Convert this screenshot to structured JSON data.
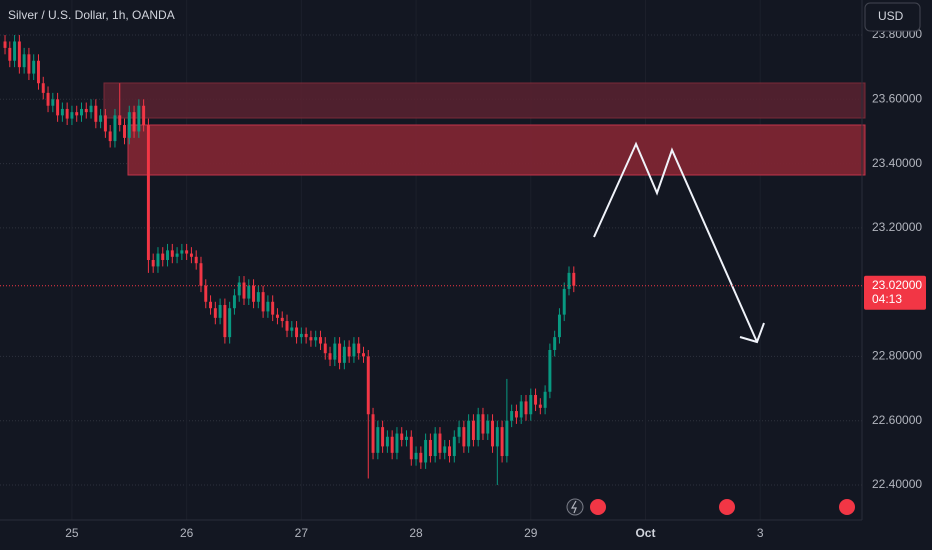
{
  "chart_data": {
    "type": "candlestick",
    "title": "Silver / U.S. Dollar, 1h, OANDA",
    "currency_button": "USD",
    "up_color": "#089981",
    "down_color": "#f23645",
    "open": [
      23.78,
      23.76,
      23.72,
      23.78,
      23.7,
      23.74,
      23.68,
      23.72,
      23.65,
      23.62,
      23.58,
      23.6,
      23.55,
      23.57,
      23.54,
      23.56,
      23.55,
      23.57,
      23.56,
      23.58,
      23.53,
      23.55,
      23.5,
      23.47,
      23.55,
      23.52,
      23.48,
      23.56,
      23.5,
      23.58,
      23.52,
      23.1,
      23.08,
      23.12,
      23.1,
      23.13,
      23.11,
      23.12,
      23.13,
      23.12,
      23.11,
      23.09,
      23.02,
      22.97,
      22.95,
      22.92,
      22.96,
      22.86,
      22.95,
      22.99,
      23.03,
      22.98,
      23.02,
      22.97,
      23.0,
      22.94,
      22.97,
      22.93,
      22.92,
      22.91,
      22.88,
      22.89,
      22.86,
      22.87,
      22.86,
      22.85,
      22.86,
      22.84,
      22.81,
      22.79,
      22.84,
      22.78,
      22.83,
      22.8,
      22.84,
      22.81,
      22.8,
      22.62,
      22.5,
      22.58,
      22.52,
      22.55,
      22.5,
      22.56,
      22.54,
      22.55,
      22.48,
      22.5,
      22.47,
      22.54,
      22.49,
      22.56,
      22.5,
      22.52,
      22.49,
      22.55,
      22.58,
      22.52,
      22.6,
      22.54,
      22.62,
      22.56,
      22.6,
      22.52,
      22.58,
      22.49,
      22.6,
      22.63,
      22.61,
      22.66,
      22.62,
      22.68,
      22.65,
      22.64,
      22.69,
      22.82,
      22.86,
      22.93,
      23.01,
      23.06
    ],
    "high": [
      23.8,
      23.78,
      23.8,
      23.8,
      23.76,
      23.76,
      23.74,
      23.74,
      23.67,
      23.64,
      23.62,
      23.62,
      23.59,
      23.59,
      23.58,
      23.58,
      23.59,
      23.59,
      23.6,
      23.6,
      23.57,
      23.57,
      23.52,
      23.57,
      23.65,
      23.54,
      23.58,
      23.58,
      23.6,
      23.6,
      23.54,
      23.12,
      23.14,
      23.14,
      23.15,
      23.15,
      23.14,
      23.15,
      23.15,
      23.14,
      23.13,
      23.11,
      23.04,
      22.99,
      22.97,
      22.98,
      22.98,
      22.97,
      23.01,
      23.05,
      23.05,
      23.04,
      23.04,
      23.02,
      23.02,
      22.99,
      22.99,
      22.95,
      22.94,
      22.93,
      22.91,
      22.91,
      22.89,
      22.89,
      22.88,
      22.88,
      22.88,
      22.86,
      22.83,
      22.86,
      22.86,
      22.85,
      22.85,
      22.86,
      22.86,
      22.83,
      22.82,
      22.64,
      22.6,
      22.6,
      22.57,
      22.57,
      22.58,
      22.58,
      22.57,
      22.57,
      22.52,
      22.52,
      22.56,
      22.56,
      22.58,
      22.58,
      22.54,
      22.54,
      22.57,
      22.6,
      22.6,
      22.62,
      22.62,
      22.64,
      22.64,
      22.62,
      22.62,
      22.6,
      22.6,
      22.73,
      22.65,
      22.65,
      22.68,
      22.68,
      22.7,
      22.7,
      22.67,
      22.71,
      22.84,
      22.88,
      22.95,
      23.03,
      23.08,
      23.08
    ],
    "low": [
      23.74,
      23.7,
      23.7,
      23.68,
      23.68,
      23.66,
      23.66,
      23.63,
      23.6,
      23.56,
      23.56,
      23.53,
      23.53,
      23.52,
      23.52,
      23.53,
      23.53,
      23.54,
      23.54,
      23.51,
      23.51,
      23.48,
      23.45,
      23.45,
      23.5,
      23.46,
      23.46,
      23.48,
      23.48,
      23.5,
      23.06,
      23.06,
      23.06,
      23.08,
      23.08,
      23.09,
      23.09,
      23.1,
      23.1,
      23.09,
      23.07,
      23.0,
      22.95,
      22.93,
      22.9,
      22.9,
      22.84,
      22.84,
      22.93,
      22.97,
      22.96,
      22.96,
      22.95,
      22.95,
      22.92,
      22.92,
      22.91,
      22.9,
      22.89,
      22.86,
      22.86,
      22.84,
      22.84,
      22.84,
      22.83,
      22.83,
      22.82,
      22.79,
      22.77,
      22.77,
      22.76,
      22.76,
      22.78,
      22.78,
      22.79,
      22.78,
      22.42,
      22.48,
      22.48,
      22.5,
      22.5,
      22.48,
      22.48,
      22.52,
      22.52,
      22.46,
      22.46,
      22.45,
      22.45,
      22.47,
      22.47,
      22.48,
      22.48,
      22.47,
      22.47,
      22.53,
      22.5,
      22.5,
      22.52,
      22.52,
      22.54,
      22.54,
      22.5,
      22.4,
      22.47,
      22.47,
      22.58,
      22.59,
      22.59,
      22.6,
      22.6,
      22.63,
      22.62,
      22.62,
      22.67,
      22.8,
      22.84,
      22.91,
      22.99,
      23.0
    ],
    "close": [
      23.76,
      23.72,
      23.78,
      23.7,
      23.74,
      23.68,
      23.72,
      23.65,
      23.62,
      23.58,
      23.6,
      23.55,
      23.57,
      23.54,
      23.56,
      23.55,
      23.57,
      23.56,
      23.58,
      23.53,
      23.55,
      23.5,
      23.47,
      23.55,
      23.52,
      23.48,
      23.56,
      23.5,
      23.58,
      23.52,
      23.1,
      23.08,
      23.12,
      23.1,
      23.13,
      23.11,
      23.12,
      23.13,
      23.12,
      23.11,
      23.09,
      23.02,
      22.97,
      22.95,
      22.92,
      22.96,
      22.86,
      22.95,
      22.99,
      23.03,
      22.98,
      23.02,
      22.97,
      23.0,
      22.94,
      22.97,
      22.93,
      22.92,
      22.91,
      22.88,
      22.89,
      22.86,
      22.87,
      22.86,
      22.85,
      22.86,
      22.84,
      22.81,
      22.79,
      22.84,
      22.78,
      22.83,
      22.8,
      22.84,
      22.81,
      22.8,
      22.62,
      22.5,
      22.58,
      22.52,
      22.55,
      22.5,
      22.56,
      22.54,
      22.55,
      22.48,
      22.5,
      22.47,
      22.54,
      22.49,
      22.56,
      22.5,
      22.52,
      22.49,
      22.55,
      22.58,
      22.52,
      22.6,
      22.54,
      22.62,
      22.56,
      22.6,
      22.52,
      22.58,
      22.49,
      22.6,
      22.63,
      22.61,
      22.66,
      22.62,
      22.68,
      22.65,
      22.64,
      22.69,
      22.82,
      22.86,
      22.93,
      23.01,
      23.06,
      23.02
    ],
    "xlim": [
      -1.05,
      179.3
    ],
    "xticks": [
      {
        "value": 14,
        "label": "25"
      },
      {
        "value": 38,
        "label": "26"
      },
      {
        "value": 62,
        "label": "27"
      },
      {
        "value": 86,
        "label": "28"
      },
      {
        "value": 110,
        "label": "29"
      },
      {
        "value": 134,
        "label": "Oct"
      },
      {
        "value": 158,
        "label": "3"
      }
    ],
    "ylim": [
      22.291,
      23.909
    ],
    "yticks": [
      {
        "value": 22.4,
        "label": "22.40000"
      },
      {
        "value": 22.6,
        "label": "22.60000"
      },
      {
        "value": 22.8,
        "label": "22.80000"
      },
      {
        "value": 23.2,
        "label": "23.20000"
      },
      {
        "value": 23.4,
        "label": "23.40000"
      },
      {
        "value": 23.6,
        "label": "23.60000"
      },
      {
        "value": 23.8,
        "label": "23.80000"
      }
    ],
    "last_price": {
      "value": 23.02,
      "label": "23.02000"
    },
    "countdown": "04:13"
  }
}
